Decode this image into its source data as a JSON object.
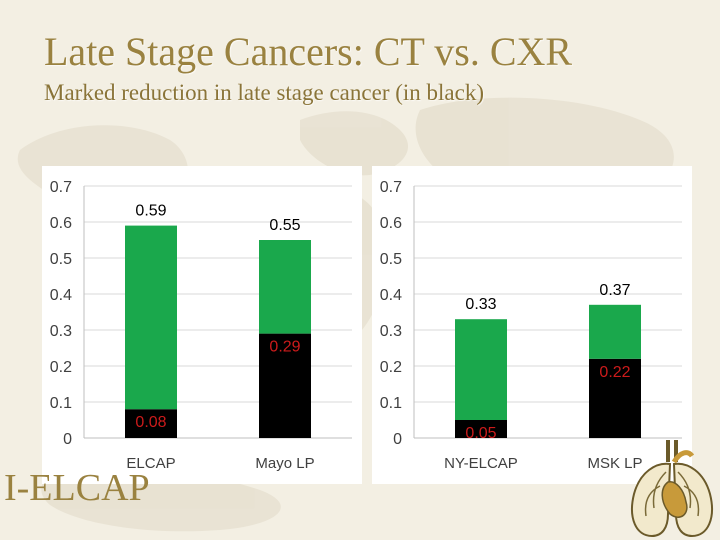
{
  "slide": {
    "title": "Late Stage Cancers: CT vs. CXR",
    "subtitle": "Marked reduction in late stage cancer (in black)",
    "logo": "I-ELCAP"
  },
  "colors": {
    "total": "#1aa84c",
    "late_stage": "#000000",
    "total_label": "#000000",
    "late_label": "#cc1b1b",
    "title": "#9a8240"
  },
  "chart_data": [
    {
      "type": "bar",
      "stacked": true,
      "categories": [
        "ELCAP",
        "Mayo LP"
      ],
      "series": [
        {
          "values": [
            0.08,
            0.29
          ]
        },
        {
          "values": [
            0.51,
            0.26
          ]
        }
      ],
      "totals": [
        0.59,
        0.55
      ],
      "data_labels": {
        "late": [
          "0.08",
          "0.29"
        ],
        "total": [
          "0.59",
          "0.55"
        ]
      },
      "ylim": [
        0,
        0.7
      ],
      "yticks": [
        "0",
        "0.1",
        "0.2",
        "0.3",
        "0.4",
        "0.5",
        "0.6",
        "0.7"
      ],
      "grid": true,
      "title": "",
      "xlabel": "",
      "ylabel": ""
    },
    {
      "type": "bar",
      "stacked": true,
      "categories": [
        "NY-ELCAP",
        "MSK LP"
      ],
      "series": [
        {
          "values": [
            0.05,
            0.22
          ]
        },
        {
          "values": [
            0.28,
            0.15
          ]
        }
      ],
      "totals": [
        0.33,
        0.37
      ],
      "data_labels": {
        "late": [
          "0.05",
          "0.22"
        ],
        "total": [
          "0.33",
          "0.37"
        ]
      },
      "ylim": [
        0,
        0.7
      ],
      "yticks": [
        "0",
        "0.1",
        "0.2",
        "0.3",
        "0.4",
        "0.5",
        "0.6",
        "0.7"
      ],
      "grid": true,
      "title": "",
      "xlabel": "",
      "ylabel": ""
    }
  ]
}
